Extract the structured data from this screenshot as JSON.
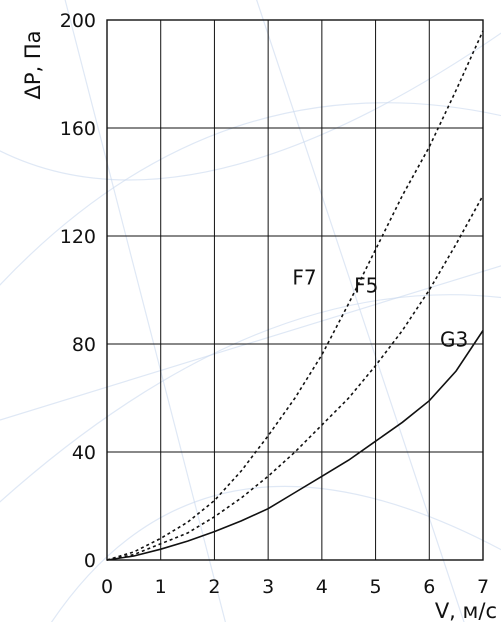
{
  "chart_data": {
    "type": "line",
    "xlabel": "V, м/с",
    "ylabel": "ΔP, Па",
    "xlim": [
      0,
      7
    ],
    "ylim": [
      0,
      200
    ],
    "x_ticks": [
      "0",
      "1",
      "2",
      "3",
      "4",
      "5",
      "6",
      "7"
    ],
    "y_ticks": [
      "0",
      "40",
      "80",
      "120",
      "160",
      "200"
    ],
    "grid": true,
    "legend": "none (series labelled directly on curves)",
    "series": [
      {
        "name": "F7",
        "style": "dotted",
        "color": "#111111",
        "x": [
          0,
          0.5,
          1,
          1.5,
          2,
          2.5,
          3,
          3.5,
          4,
          4.5,
          5,
          5.5,
          6,
          6.5,
          7
        ],
        "y": [
          0,
          3,
          8,
          14,
          22,
          33,
          46,
          60,
          76,
          95,
          115,
          135,
          153,
          174,
          196
        ]
      },
      {
        "name": "F5",
        "style": "dotted",
        "color": "#111111",
        "x": [
          0,
          0.5,
          1,
          1.5,
          2,
          2.5,
          3,
          3.5,
          4,
          4.5,
          5,
          5.5,
          6,
          6.5,
          7
        ],
        "y": [
          0,
          2,
          6,
          10,
          16,
          23,
          31,
          40,
          50,
          60,
          72,
          85,
          100,
          117,
          135
        ]
      },
      {
        "name": "G3",
        "style": "solid",
        "color": "#111111",
        "x": [
          0,
          0.5,
          1,
          1.5,
          2,
          2.5,
          3,
          3.5,
          4,
          4.5,
          5,
          5.5,
          6,
          6.5,
          7
        ],
        "y": [
          0,
          1.5,
          4,
          7,
          10.5,
          14.5,
          19,
          25,
          31,
          37,
          44,
          51,
          59,
          70,
          85
        ]
      }
    ]
  },
  "colors": {
    "background": "#ffffff",
    "ink": "#111111",
    "watermark": "#c9d9ee"
  }
}
